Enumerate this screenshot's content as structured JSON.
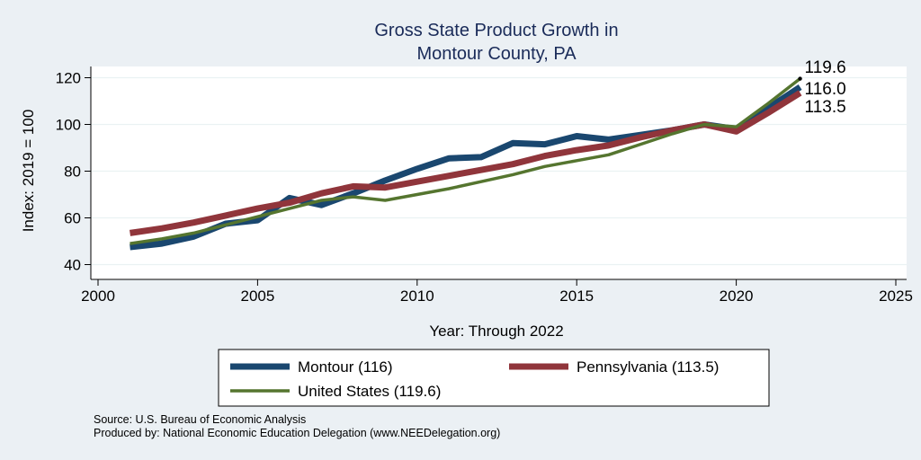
{
  "chart_data": {
    "type": "line",
    "title_lines": [
      "Gross State Product Growth in",
      "Montour County, PA"
    ],
    "xlabel": "Year: Through 2022",
    "ylabel": "Index: 2019 = 100",
    "xlim": [
      2000,
      2025
    ],
    "ylim": [
      38,
      124
    ],
    "xticks": [
      2000,
      2005,
      2010,
      2015,
      2020,
      2025
    ],
    "yticks": [
      40,
      60,
      80,
      100,
      120
    ],
    "grid": true,
    "legend_position": "bottom",
    "x": [
      2001,
      2002,
      2003,
      2004,
      2005,
      2006,
      2007,
      2008,
      2009,
      2010,
      2011,
      2012,
      2013,
      2014,
      2015,
      2016,
      2017,
      2018,
      2019,
      2020,
      2021,
      2022
    ],
    "series": [
      {
        "name": "Montour",
        "legend_label": "Montour  (116)",
        "color": "#1a476f",
        "values": [
          47.5,
          49,
          52,
          57.5,
          59,
          68.5,
          65.5,
          70.5,
          76,
          81,
          85.5,
          86,
          92,
          91.5,
          95,
          93.5,
          95.5,
          97.5,
          100,
          98,
          107,
          116.0
        ]
      },
      {
        "name": "Pennsylvania",
        "legend_label": "Pennsylvania (113.5)",
        "color": "#90353b",
        "values": [
          53.5,
          55.5,
          58,
          61,
          64,
          66.5,
          70.5,
          73.5,
          73,
          75.5,
          78,
          80.5,
          83,
          86.5,
          89,
          91,
          94.5,
          97.5,
          100,
          97,
          105,
          113.5
        ]
      },
      {
        "name": "United States",
        "legend_label": "United States (119.6)",
        "color": "#55752f",
        "values": [
          49,
          51,
          53.5,
          57,
          60.5,
          64,
          67.5,
          69,
          67.5,
          70,
          72.5,
          75.5,
          78.5,
          82,
          84.5,
          87,
          91.5,
          96,
          100,
          99,
          109,
          119.6
        ]
      }
    ],
    "end_labels": [
      "119.6",
      "116.0",
      "113.5"
    ],
    "notes": [
      "Source: U.S. Bureau of Economic Analysis",
      "Produced by: National Economic Education Delegation (www.NEEDelegation.org)"
    ]
  }
}
